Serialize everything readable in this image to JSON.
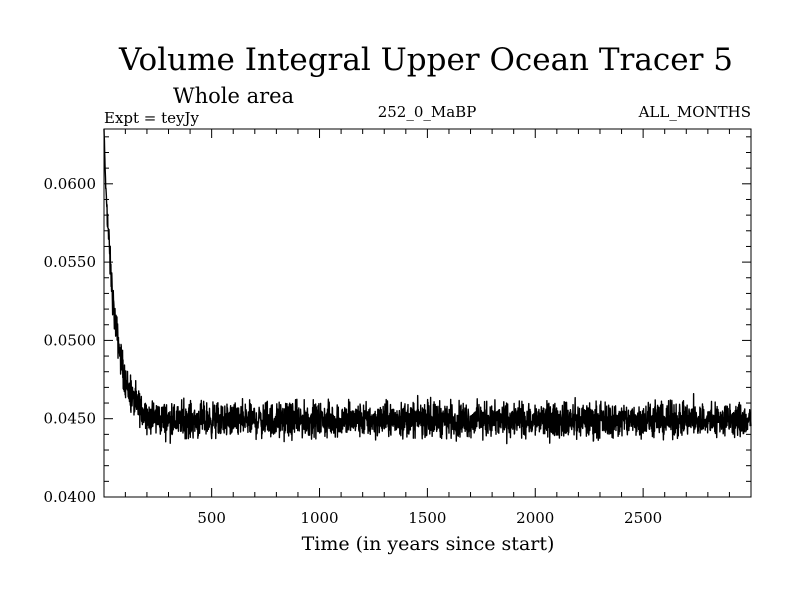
{
  "chart_data": {
    "type": "line",
    "title": "Volume Integral Upper Ocean Tracer 5",
    "subtitle": "Whole area",
    "header_left": "Expt = teyJy",
    "header_center": "252_0_MaBP",
    "header_right": "ALL_MONTHS",
    "xlabel": "Time (in years since start)",
    "ylabel": "",
    "xlim": [
      1,
      3000
    ],
    "ylim": [
      0.04,
      0.0635
    ],
    "xticks": [
      500,
      1000,
      1500,
      2000,
      2500
    ],
    "xtick_labels": [
      "500",
      "1000",
      "1500",
      "2000",
      "2500"
    ],
    "yticks": [
      0.04,
      0.045,
      0.05,
      0.055,
      0.06
    ],
    "ytick_labels": [
      "0.0400",
      "0.0450",
      "0.0500",
      "0.0550",
      "0.0600"
    ],
    "grid": false,
    "series": [
      {
        "name": "Volume Integral Upper Ocean Tracer 5",
        "color": "#000000",
        "description": "Starts near 0.0635, decays rapidly to about 0.0450 by year ~250, then fluctuates around 0.0449 with noise of roughly ±0.0015",
        "x": [
          1,
          5,
          10,
          20,
          30,
          40,
          50,
          60,
          75,
          90,
          110,
          130,
          150,
          175,
          200,
          250,
          300,
          400,
          500,
          750,
          1000,
          1250,
          1500,
          1750,
          2000,
          2250,
          2500,
          2750,
          3000
        ],
        "values": [
          0.0635,
          0.0615,
          0.0595,
          0.0572,
          0.0548,
          0.053,
          0.0515,
          0.0505,
          0.0492,
          0.048,
          0.047,
          0.0463,
          0.0459,
          0.0455,
          0.0452,
          0.045,
          0.0449,
          0.0449,
          0.0449,
          0.0449,
          0.0449,
          0.0449,
          0.045,
          0.0449,
          0.0449,
          0.0449,
          0.0449,
          0.0449,
          0.0449
        ],
        "noise_amplitude": 0.0012
      }
    ]
  }
}
